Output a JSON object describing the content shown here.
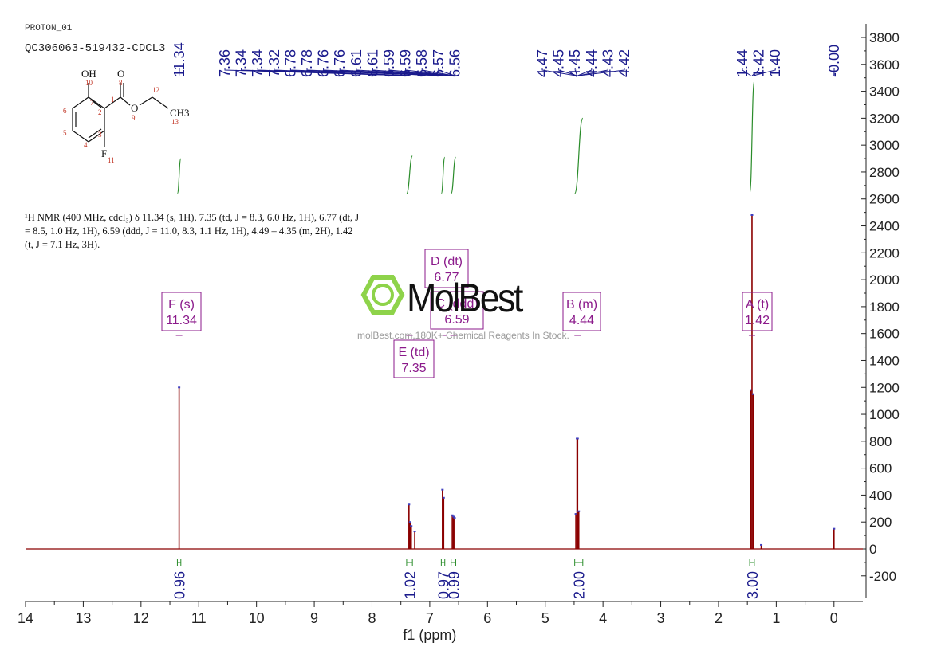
{
  "header": {
    "experiment": "PROTON_01",
    "sample": "QC306063-519432-CDCL3"
  },
  "structure": {
    "atom_labels": [
      "OH",
      "O",
      "O",
      "CH3",
      "F"
    ],
    "atom_numbers": [
      "10",
      "8",
      "7",
      "1",
      "2",
      "6",
      "5",
      "4",
      "3",
      "9",
      "12",
      "13",
      "11"
    ]
  },
  "description": {
    "text": "¹H NMR (400 MHz, cdcl₃) δ 11.34 (s, 1H), 7.35 (td, J = 8.3, 6.0 Hz, 1H), 6.77 (dt, J = 8.5, 1.0 Hz, 1H), 6.59 (ddd, J = 11.0, 8.3, 1.1 Hz, 1H), 4.49 – 4.35 (m, 2H), 1.42 (t, J = 7.1 Hz, 3H)."
  },
  "watermark": {
    "brand": "MolBest",
    "tagline": "molBest.com,180K+ Chemical Reagents In Stock."
  },
  "colors": {
    "spectrum": "#8b0000",
    "peak_labels": "#1a1a8c",
    "integral": "#2a8c2a",
    "multiplet": "#8b1a8b",
    "peak_marker": "#4040c0"
  },
  "chart_data": {
    "type": "line",
    "title": "",
    "xlabel": "f1 (ppm)",
    "ylabel": "",
    "xlim": [
      14,
      -0.5
    ],
    "ylim": [
      -300,
      3900
    ],
    "x_reversed": true,
    "x_ticks": [
      14,
      13,
      12,
      11,
      10,
      9,
      8,
      7,
      6,
      5,
      4,
      3,
      2,
      1,
      0
    ],
    "x_tick_labels": [
      "14",
      "13",
      "12",
      "11",
      "10",
      "9",
      "8",
      "7",
      "6",
      "5",
      "4",
      "3",
      "2",
      "1",
      "0"
    ],
    "y_ticks": [
      -200,
      0,
      200,
      400,
      600,
      800,
      1000,
      1200,
      1400,
      1600,
      1800,
      2000,
      2200,
      2400,
      2600,
      2800,
      3000,
      3200,
      3400,
      3600,
      3800
    ],
    "y_tick_labels": [
      "-200",
      "0",
      "200",
      "400",
      "600",
      "800",
      "1000",
      "1200",
      "1400",
      "1600",
      "1800",
      "2000",
      "2200",
      "2400",
      "2600",
      "2800",
      "3000",
      "3200",
      "3400",
      "3600",
      "3800"
    ],
    "y_axis_side": "right",
    "grid": false,
    "peaks": [
      {
        "ppm": 11.34,
        "height": 1200
      },
      {
        "ppm": 7.36,
        "height": 330
      },
      {
        "ppm": 7.34,
        "height": 200
      },
      {
        "ppm": 7.32,
        "height": 170
      },
      {
        "ppm": 7.26,
        "height": 130
      },
      {
        "ppm": 6.78,
        "height": 440
      },
      {
        "ppm": 6.76,
        "height": 380
      },
      {
        "ppm": 6.61,
        "height": 250
      },
      {
        "ppm": 6.59,
        "height": 240
      },
      {
        "ppm": 6.57,
        "height": 230
      },
      {
        "ppm": 4.47,
        "height": 260
      },
      {
        "ppm": 4.45,
        "height": 820
      },
      {
        "ppm": 4.44,
        "height": 820
      },
      {
        "ppm": 4.42,
        "height": 280
      },
      {
        "ppm": 1.44,
        "height": 1180
      },
      {
        "ppm": 1.42,
        "height": 2480
      },
      {
        "ppm": 1.4,
        "height": 1150
      },
      {
        "ppm": 1.26,
        "height": 30
      },
      {
        "ppm": 0.0,
        "height": 150
      }
    ],
    "peak_labels": [
      {
        "ppm": 11.34,
        "text": "11.34"
      },
      {
        "ppm": 7.36,
        "text": "7.36"
      },
      {
        "ppm": 7.34,
        "text": "7.34"
      },
      {
        "ppm": 7.34,
        "text": "7.34"
      },
      {
        "ppm": 7.32,
        "text": "7.32"
      },
      {
        "ppm": 6.78,
        "text": "6.78"
      },
      {
        "ppm": 6.78,
        "text": "6.78"
      },
      {
        "ppm": 6.76,
        "text": "6.76"
      },
      {
        "ppm": 6.76,
        "text": "6.76"
      },
      {
        "ppm": 6.61,
        "text": "6.61"
      },
      {
        "ppm": 6.61,
        "text": "6.61"
      },
      {
        "ppm": 6.59,
        "text": "6.59"
      },
      {
        "ppm": 6.59,
        "text": "6.59"
      },
      {
        "ppm": 6.58,
        "text": "6.58"
      },
      {
        "ppm": 6.57,
        "text": "6.57"
      },
      {
        "ppm": 6.56,
        "text": "6.56"
      },
      {
        "ppm": 4.47,
        "text": "4.47"
      },
      {
        "ppm": 4.45,
        "text": "4.45"
      },
      {
        "ppm": 4.45,
        "text": "4.45"
      },
      {
        "ppm": 4.44,
        "text": "4.44"
      },
      {
        "ppm": 4.43,
        "text": "4.43"
      },
      {
        "ppm": 4.42,
        "text": "4.42"
      },
      {
        "ppm": 1.44,
        "text": "1.44"
      },
      {
        "ppm": 1.42,
        "text": "1.42"
      },
      {
        "ppm": 1.4,
        "text": "1.40"
      },
      {
        "ppm": 0.0,
        "text": "-0.00"
      }
    ],
    "integrals": [
      {
        "from": 11.37,
        "to": 11.31,
        "value": "0.96",
        "curve_bottom": 2640,
        "curve_top": 2900
      },
      {
        "from": 7.4,
        "to": 7.3,
        "value": "1.02",
        "curve_bottom": 2640,
        "curve_top": 2920
      },
      {
        "from": 6.8,
        "to": 6.74,
        "value": "0.97",
        "curve_bottom": 2640,
        "curve_top": 2910
      },
      {
        "from": 6.63,
        "to": 6.55,
        "value": "0.99",
        "curve_bottom": 2640,
        "curve_top": 2910
      },
      {
        "from": 4.49,
        "to": 4.35,
        "value": "2.00",
        "curve_bottom": 2640,
        "curve_top": 3200
      },
      {
        "from": 1.46,
        "to": 1.38,
        "value": "3.00",
        "curve_bottom": 2640,
        "curve_top": 3480
      }
    ],
    "multiplets": [
      {
        "letter": "F (s)",
        "ppm_label": "11.34",
        "ppm": 11.34
      },
      {
        "letter": "E (td)",
        "ppm_label": "7.35",
        "ppm": 7.35
      },
      {
        "letter": "D (dt)",
        "ppm_label": "6.77",
        "ppm": 6.77
      },
      {
        "letter": "C (ddd)",
        "ppm_label": "6.59",
        "ppm": 6.59
      },
      {
        "letter": "B (m)",
        "ppm_label": "4.44",
        "ppm": 4.44
      },
      {
        "letter": "A (t)",
        "ppm_label": "1.42",
        "ppm": 1.42
      }
    ]
  }
}
